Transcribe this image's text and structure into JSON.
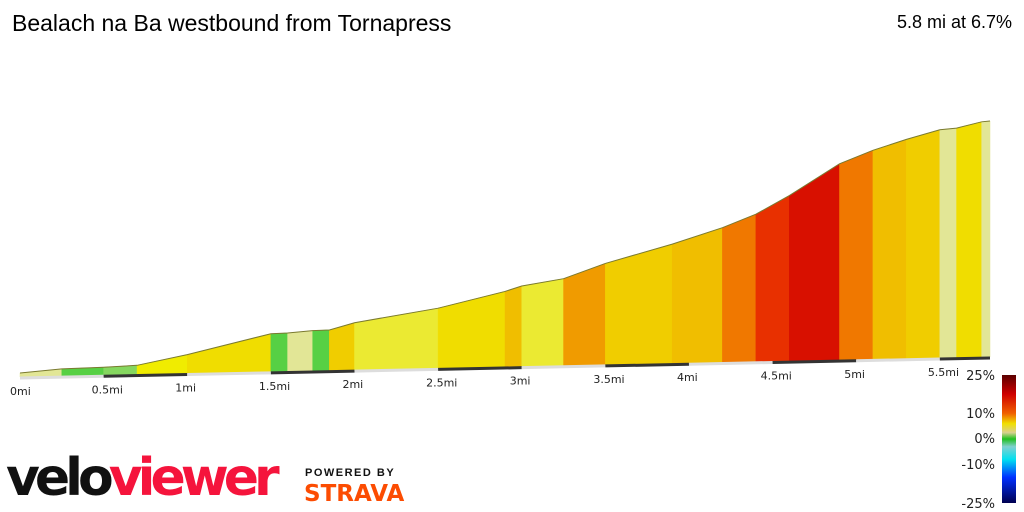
{
  "header": {
    "title": "Bealach na Ba westbound from Tornapress",
    "summary": "5.8 mi at 6.7%"
  },
  "branding": {
    "logo_part1": "velo",
    "logo_part2": "viewer",
    "powered_by": "POWERED BY",
    "strava": "STRAVA"
  },
  "chart_data": {
    "type": "area",
    "title": "Bealach na Ba westbound from Tornapress",
    "xlabel": "",
    "ylabel": "",
    "xlim": [
      0,
      5.8
    ],
    "x_ticks": [
      "0mi",
      "0.5mi",
      "1mi",
      "1.5mi",
      "2mi",
      "2.5mi",
      "3mi",
      "3.5mi",
      "4mi",
      "4.5mi",
      "5mi",
      "5.5mi"
    ],
    "x_tick_values": [
      0,
      0.5,
      1,
      1.5,
      2,
      2.5,
      3,
      3.5,
      4,
      4.5,
      5,
      5.5
    ],
    "segments": [
      {
        "from": 0,
        "to": 0.25,
        "grade": 2
      },
      {
        "from": 0.25,
        "to": 0.5,
        "grade": 0.5
      },
      {
        "from": 0.5,
        "to": 0.7,
        "grade": 1
      },
      {
        "from": 0.7,
        "to": 1.0,
        "grade": 5
      },
      {
        "from": 1.0,
        "to": 1.5,
        "grade": 6
      },
      {
        "from": 1.5,
        "to": 1.6,
        "grade": 0.5
      },
      {
        "from": 1.6,
        "to": 1.75,
        "grade": 2
      },
      {
        "from": 1.75,
        "to": 1.85,
        "grade": 0.5
      },
      {
        "from": 1.85,
        "to": 2.0,
        "grade": 7
      },
      {
        "from": 2.0,
        "to": 2.5,
        "grade": 4
      },
      {
        "from": 2.5,
        "to": 2.9,
        "grade": 6
      },
      {
        "from": 2.9,
        "to": 3.0,
        "grade": 8
      },
      {
        "from": 3.0,
        "to": 3.25,
        "grade": 4
      },
      {
        "from": 3.25,
        "to": 3.5,
        "grade": 9
      },
      {
        "from": 3.5,
        "to": 3.9,
        "grade": 7
      },
      {
        "from": 3.9,
        "to": 4.2,
        "grade": 8
      },
      {
        "from": 4.2,
        "to": 4.4,
        "grade": 10
      },
      {
        "from": 4.4,
        "to": 4.6,
        "grade": 14
      },
      {
        "from": 4.6,
        "to": 4.9,
        "grade": 16
      },
      {
        "from": 4.9,
        "to": 5.1,
        "grade": 10
      },
      {
        "from": 5.1,
        "to": 5.3,
        "grade": 8
      },
      {
        "from": 5.3,
        "to": 5.5,
        "grade": 7
      },
      {
        "from": 5.5,
        "to": 5.6,
        "grade": 2
      },
      {
        "from": 5.6,
        "to": 5.75,
        "grade": 6
      },
      {
        "from": 5.75,
        "to": 5.8,
        "grade": 2
      }
    ],
    "legend": {
      "type": "gradient colorbar",
      "placement": "bottom-right",
      "labels": [
        "25%",
        "10%",
        "0%",
        "-10%",
        "-25%"
      ],
      "values": [
        25,
        10,
        0,
        -10,
        -25
      ]
    },
    "grid": false
  }
}
